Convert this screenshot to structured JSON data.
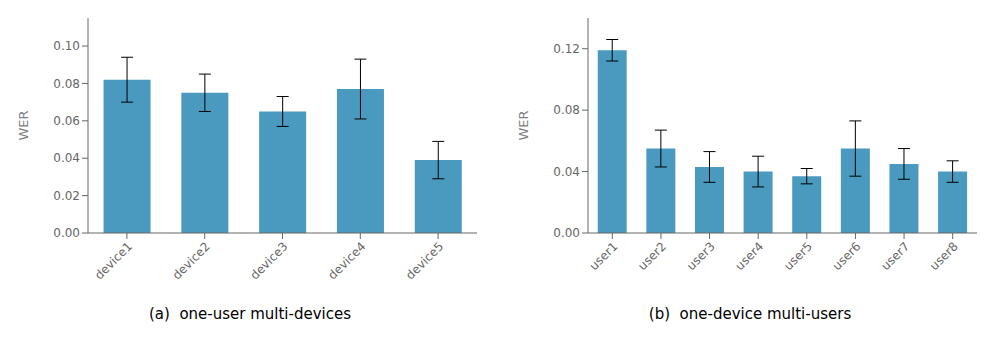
{
  "chart_data": [
    {
      "type": "bar",
      "title": "(a)  one-user multi-devices",
      "y_label": "WER",
      "categories": [
        "device1",
        "device2",
        "device3",
        "device4",
        "device5"
      ],
      "values": [
        0.082,
        0.075,
        0.065,
        0.077,
        0.039
      ],
      "errors": [
        0.012,
        0.01,
        0.008,
        0.016,
        0.01
      ],
      "color": "#4a9abf",
      "ylim": [
        0,
        0.115
      ],
      "yticks": [
        {
          "value": 0,
          "label": "0.00"
        },
        0.02,
        0.04,
        0.06,
        0.08,
        {
          "value": 0.1,
          "label": "0.10"
        }
      ],
      "grid": false
    },
    {
      "type": "bar",
      "title": "(b)  one-device multi-users",
      "y_label": "WER",
      "categories": [
        "user1",
        "user2",
        "user3",
        "user4",
        "user5",
        "user6",
        "user7",
        "user8"
      ],
      "values": [
        0.119,
        0.055,
        0.043,
        0.04,
        0.037,
        0.055,
        0.045,
        0.04
      ],
      "errors": [
        0.007,
        0.012,
        0.01,
        0.01,
        0.005,
        0.018,
        0.01,
        0.007
      ],
      "color": "#4a9abf",
      "ylim": [
        0,
        0.14
      ],
      "yticks": [
        {
          "value": 0,
          "label": "0.00"
        },
        0.04,
        0.08,
        0.12
      ],
      "grid": false
    }
  ]
}
